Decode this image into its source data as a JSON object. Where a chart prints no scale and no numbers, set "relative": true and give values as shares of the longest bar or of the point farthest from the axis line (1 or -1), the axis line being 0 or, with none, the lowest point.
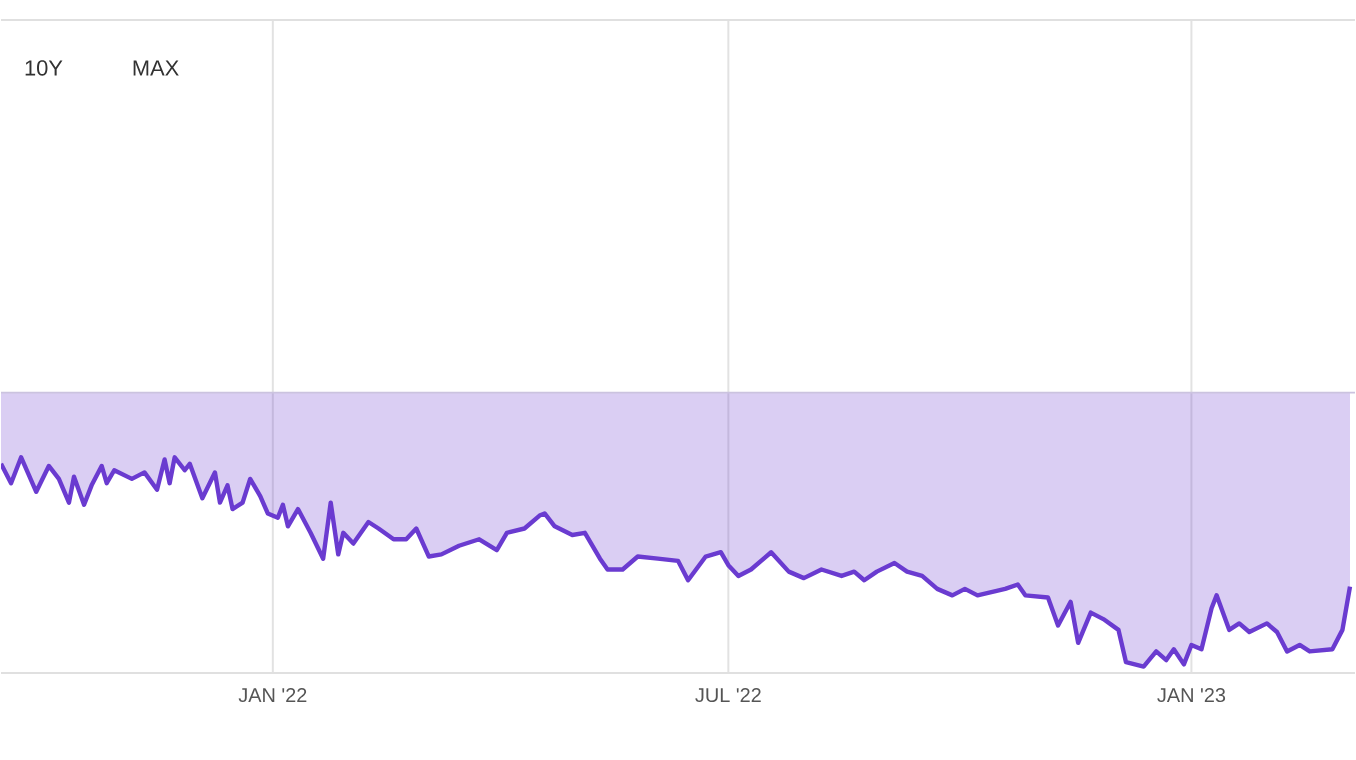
{
  "chart_data": {
    "type": "area",
    "relative": true,
    "color": "#6a3bd0",
    "grid": "x",
    "annotations": [
      "10Y",
      "MAX"
    ],
    "xlim": [
      "2021-09-15",
      "2023-03-07"
    ],
    "xticks": [
      {
        "value": "2022-01-01",
        "label": "JAN '22"
      },
      {
        "value": "2022-07-01",
        "label": "JUL '22"
      },
      {
        "value": "2023-01-01",
        "label": "JAN '23"
      }
    ],
    "ref_lines": [
      {
        "axis": "y",
        "value": 1.3,
        "color": "#cbc3df"
      }
    ],
    "x": [
      "2021-09-15",
      "2021-09-19",
      "2021-09-23",
      "2021-09-29",
      "2021-10-04",
      "2021-10-08",
      "2021-10-12",
      "2021-10-14",
      "2021-10-18",
      "2021-10-21",
      "2021-10-25",
      "2021-10-27",
      "2021-10-30",
      "2021-11-06",
      "2021-11-11",
      "2021-11-16",
      "2021-11-19",
      "2021-11-21",
      "2021-11-23",
      "2021-11-27",
      "2021-11-29",
      "2021-12-04",
      "2021-12-09",
      "2021-12-11",
      "2021-12-14",
      "2021-12-16",
      "2021-12-20",
      "2021-12-23",
      "2021-12-27",
      "2021-12-30",
      "2022-01-03",
      "2022-01-05",
      "2022-01-07",
      "2022-01-11",
      "2022-01-16",
      "2022-01-21",
      "2022-01-24",
      "2022-01-27",
      "2022-01-29",
      "2022-02-02",
      "2022-02-08",
      "2022-02-12",
      "2022-02-18",
      "2022-02-23",
      "2022-02-27",
      "2022-03-04",
      "2022-03-09",
      "2022-03-16",
      "2022-03-24",
      "2022-03-31",
      "2022-04-04",
      "2022-04-11",
      "2022-04-17",
      "2022-04-19",
      "2022-04-23",
      "2022-04-30",
      "2022-05-05",
      "2022-05-11",
      "2022-05-14",
      "2022-05-20",
      "2022-05-26",
      "2022-06-03",
      "2022-06-11",
      "2022-06-15",
      "2022-06-22",
      "2022-06-28",
      "2022-07-01",
      "2022-07-05",
      "2022-07-10",
      "2022-07-18",
      "2022-07-25",
      "2022-07-31",
      "2022-08-07",
      "2022-08-15",
      "2022-08-20",
      "2022-08-24",
      "2022-08-29",
      "2022-09-05",
      "2022-09-10",
      "2022-09-16",
      "2022-09-22",
      "2022-09-28",
      "2022-10-03",
      "2022-10-08",
      "2022-10-19",
      "2022-10-24",
      "2022-10-27",
      "2022-11-05",
      "2022-11-09",
      "2022-11-14",
      "2022-11-17",
      "2022-11-22",
      "2022-11-27",
      "2022-12-03",
      "2022-12-06",
      "2022-12-13",
      "2022-12-18",
      "2022-12-22",
      "2022-12-25",
      "2022-12-29",
      "2023-01-01",
      "2023-01-05",
      "2023-01-09",
      "2023-01-11",
      "2023-01-16",
      "2023-01-20",
      "2023-01-24",
      "2023-01-31",
      "2023-02-04",
      "2023-02-08",
      "2023-02-13",
      "2023-02-17",
      "2023-02-26",
      "2023-03-02",
      "2023-03-05"
    ],
    "values": [
      0.97,
      0.88,
      1.0,
      0.84,
      0.96,
      0.9,
      0.79,
      0.91,
      0.78,
      0.87,
      0.96,
      0.88,
      0.94,
      0.9,
      0.93,
      0.85,
      0.99,
      0.88,
      1.0,
      0.94,
      0.97,
      0.81,
      0.93,
      0.79,
      0.87,
      0.76,
      0.79,
      0.9,
      0.82,
      0.74,
      0.72,
      0.78,
      0.68,
      0.76,
      0.65,
      0.53,
      0.79,
      0.55,
      0.65,
      0.6,
      0.7,
      0.67,
      0.62,
      0.62,
      0.67,
      0.54,
      0.55,
      0.59,
      0.62,
      0.57,
      0.65,
      0.67,
      0.73,
      0.74,
      0.68,
      0.64,
      0.65,
      0.53,
      0.48,
      0.48,
      0.54,
      0.53,
      0.52,
      0.43,
      0.54,
      0.56,
      0.5,
      0.45,
      0.48,
      0.56,
      0.47,
      0.44,
      0.48,
      0.45,
      0.47,
      0.43,
      0.47,
      0.51,
      0.47,
      0.45,
      0.39,
      0.36,
      0.39,
      0.36,
      0.39,
      0.41,
      0.36,
      0.35,
      0.22,
      0.33,
      0.14,
      0.28,
      0.25,
      0.2,
      0.05,
      0.03,
      0.1,
      0.06,
      0.11,
      0.04,
      0.13,
      0.11,
      0.3,
      0.36,
      0.2,
      0.23,
      0.19,
      0.23,
      0.19,
      0.1,
      0.13,
      0.1,
      0.11,
      0.2,
      0.4
    ]
  }
}
